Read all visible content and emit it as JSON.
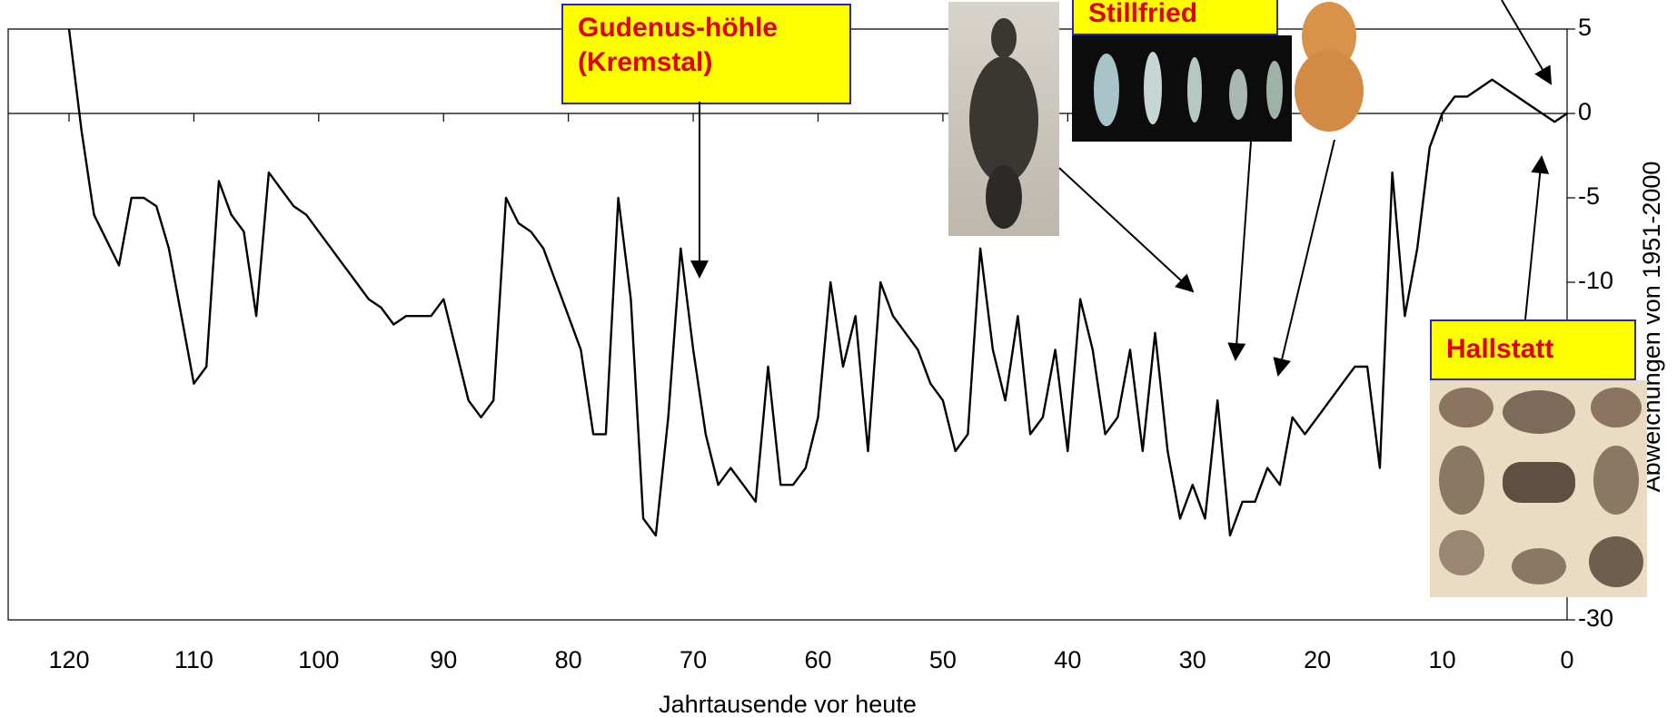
{
  "chart_data": {
    "type": "line",
    "x_label": "Jahrtausende vor heute",
    "y_label": "Abweichungen von 1951-2000",
    "x": [
      120,
      119,
      118,
      117,
      116,
      115,
      114,
      113,
      112,
      111,
      110,
      109,
      108,
      107,
      106,
      105,
      104,
      103,
      102,
      101,
      100,
      99,
      98,
      97,
      96,
      95,
      94,
      93,
      92,
      91,
      90,
      89,
      88,
      87,
      86,
      85,
      84,
      83,
      82,
      81,
      80,
      79,
      78,
      77,
      76,
      75,
      74,
      73,
      72,
      71,
      70,
      69,
      68,
      67,
      66,
      65,
      64,
      63,
      62,
      61,
      60,
      59,
      58,
      57,
      56,
      55,
      54,
      53,
      52,
      51,
      50,
      49,
      48,
      47,
      46,
      45,
      44,
      43,
      42,
      41,
      40,
      39,
      38,
      37,
      36,
      35,
      34,
      33,
      32,
      31,
      30,
      29,
      28,
      27,
      26,
      25,
      24,
      23,
      22,
      21,
      20,
      19,
      18,
      17,
      16,
      15,
      14,
      13,
      12,
      11,
      10,
      9,
      8,
      7,
      6,
      5,
      4,
      3,
      2,
      1,
      0
    ],
    "series": [
      {
        "color": "#000000",
        "values": [
          5,
          -1,
          -6,
          -7.5,
          -9,
          -5,
          -5,
          -5.5,
          -8,
          -12,
          -16,
          -15,
          -4,
          -6,
          -7,
          -12,
          -3.5,
          -4.5,
          -5.5,
          -6,
          -7,
          -8,
          -9,
          -10,
          -11,
          -11.5,
          -12.5,
          -12,
          -12,
          -12,
          -11,
          -14,
          -17,
          -18,
          -17,
          -5,
          -6.5,
          -7,
          -8,
          -10,
          -12,
          -14,
          -19,
          -19,
          -5,
          -11,
          -24,
          -25,
          -18,
          -8,
          -14,
          -19,
          -22,
          -21,
          -22,
          -23,
          -15,
          -22,
          -22,
          -21,
          -18,
          -10,
          -15,
          -12,
          -20,
          -10,
          -12,
          -13,
          -14,
          -16,
          -17,
          -20,
          -19,
          -8,
          -14,
          -17,
          -12,
          -19,
          -18,
          -14,
          -20,
          -11,
          -14,
          -19,
          -18,
          -14,
          -20,
          -13,
          -20,
          -24,
          -22,
          -24,
          -17,
          -25,
          -23,
          -23,
          -21,
          -22,
          -18,
          -19,
          -18,
          -17,
          -16,
          -15,
          -15,
          -21,
          -3.5,
          -12,
          -8,
          -2,
          0,
          1,
          1,
          1.5,
          2,
          1.5,
          1,
          0.5,
          0,
          -0.5,
          0
        ]
      }
    ],
    "xlim": [
      120,
      0
    ],
    "xticks": [
      120,
      110,
      100,
      90,
      80,
      70,
      60,
      50,
      40,
      30,
      20,
      10,
      0
    ],
    "ylim": [
      -30,
      5
    ],
    "yticks": [
      5,
      0,
      -5,
      -10,
      -30
    ],
    "annotations": [
      "Gudenus-höhle (Kremstal)",
      "Stillfried",
      "Hallstatt"
    ]
  }
}
